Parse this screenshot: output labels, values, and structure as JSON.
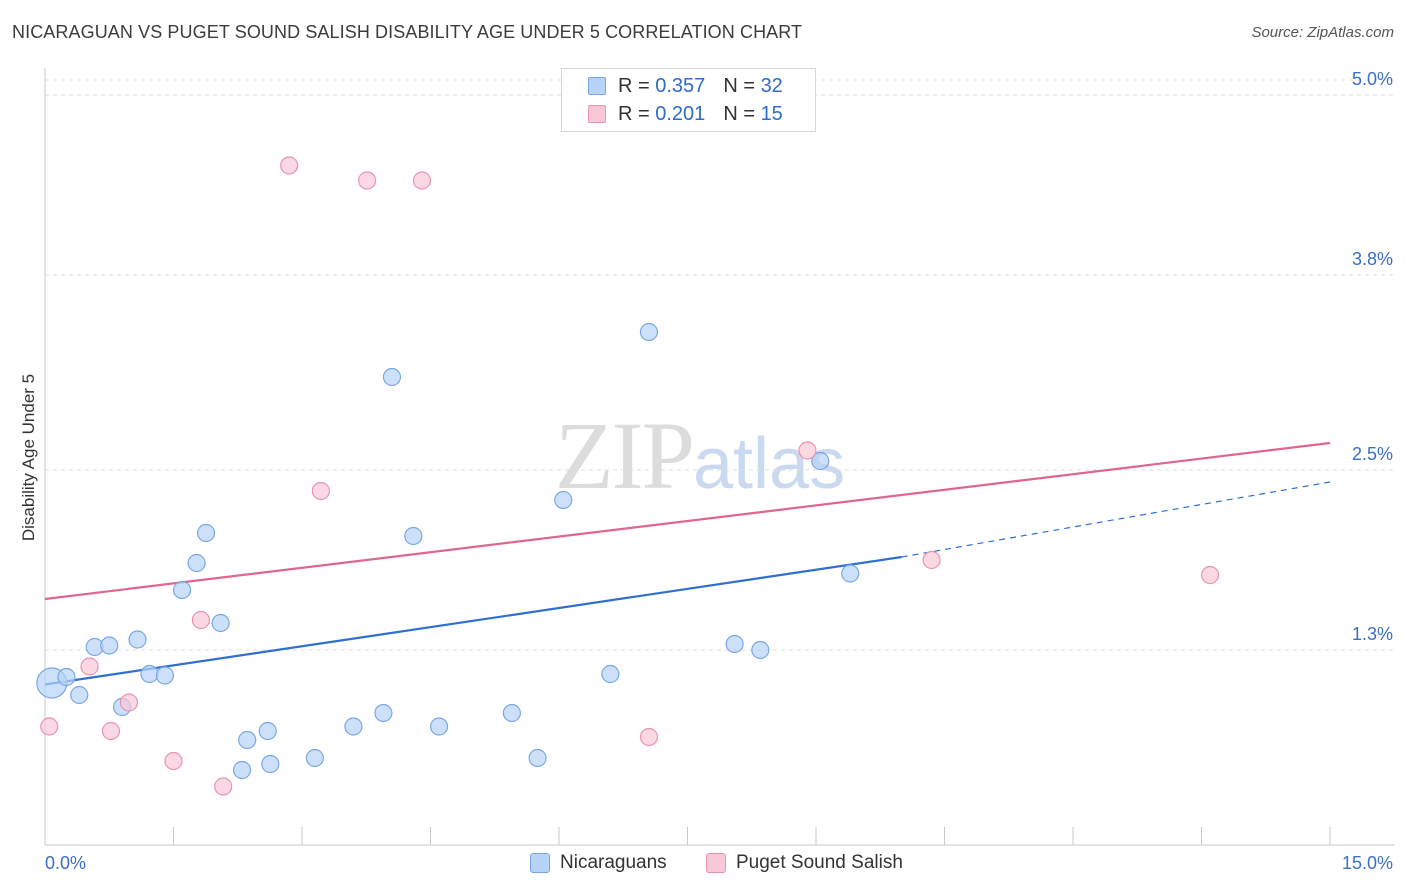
{
  "title": "NICARAGUAN VS PUGET SOUND SALISH DISABILITY AGE UNDER 5 CORRELATION CHART",
  "source": "Source: ZipAtlas.com",
  "watermark": {
    "zip": "ZIP",
    "atlas": "atlas"
  },
  "legend": {
    "r_label": "R =",
    "n_label": "N =",
    "rows": [
      {
        "r": "0.357",
        "n": "32",
        "fill": "#b7d3f7",
        "stroke": "#7aa7e3"
      },
      {
        "r": "0.201",
        "n": "15",
        "fill": "#f9c8d6",
        "stroke": "#ea93ae"
      }
    ]
  },
  "bottom_legend": [
    "Nicaraguans",
    "Puget Sound Salish"
  ],
  "colors": {
    "blue": "#2f6fd0",
    "pink": "#e0668f",
    "blue_fill": "#b7d3f7",
    "pink_fill": "#f9c8d6"
  },
  "chart_data": {
    "type": "scatter",
    "title": "NICARAGUAN VS PUGET SOUND SALISH DISABILITY AGE UNDER 5 CORRELATION CHART",
    "xlabel": "",
    "ylabel": "Disability Age Under 5",
    "xlim": [
      0,
      15
    ],
    "ylim": [
      0,
      5.1
    ],
    "x_tick_labels": [
      "0.0%",
      "15.0%"
    ],
    "y_ticks": [
      1.3,
      2.5,
      3.8,
      5.0
    ],
    "y_tick_labels": [
      "1.3%",
      "2.5%",
      "3.8%",
      "5.0%"
    ],
    "grid": true,
    "legend_position": "top-center",
    "series": [
      {
        "name": "Nicaraguans",
        "color": "#2f6fd0",
        "points": [
          {
            "x": 0.08,
            "y": 1.08,
            "big": true
          },
          {
            "x": 0.25,
            "y": 1.12
          },
          {
            "x": 0.4,
            "y": 1.0
          },
          {
            "x": 0.58,
            "y": 1.32
          },
          {
            "x": 0.75,
            "y": 1.33
          },
          {
            "x": 0.9,
            "y": 0.92
          },
          {
            "x": 1.08,
            "y": 1.37
          },
          {
            "x": 1.22,
            "y": 1.14
          },
          {
            "x": 1.4,
            "y": 1.13
          },
          {
            "x": 1.6,
            "y": 1.7
          },
          {
            "x": 1.77,
            "y": 1.88
          },
          {
            "x": 1.88,
            "y": 2.08
          },
          {
            "x": 2.05,
            "y": 1.48
          },
          {
            "x": 2.3,
            "y": 0.5
          },
          {
            "x": 2.36,
            "y": 0.7
          },
          {
            "x": 2.63,
            "y": 0.54
          },
          {
            "x": 2.6,
            "y": 0.76
          },
          {
            "x": 3.15,
            "y": 0.58
          },
          {
            "x": 3.6,
            "y": 0.79
          },
          {
            "x": 3.95,
            "y": 0.88
          },
          {
            "x": 4.05,
            "y": 3.12
          },
          {
            "x": 4.3,
            "y": 2.06
          },
          {
            "x": 4.6,
            "y": 0.79
          },
          {
            "x": 5.45,
            "y": 0.88
          },
          {
            "x": 5.75,
            "y": 0.58
          },
          {
            "x": 6.05,
            "y": 2.3
          },
          {
            "x": 6.6,
            "y": 1.14
          },
          {
            "x": 7.05,
            "y": 3.42
          },
          {
            "x": 8.05,
            "y": 1.34
          },
          {
            "x": 8.35,
            "y": 1.3
          },
          {
            "x": 9.05,
            "y": 2.56
          },
          {
            "x": 9.4,
            "y": 1.81
          }
        ],
        "trend": {
          "x": [
            0,
            10.0
          ],
          "y": [
            1.07,
            1.92
          ],
          "dashed_to": {
            "x": 15,
            "y": 2.42
          }
        }
      },
      {
        "name": "Puget Sound Salish",
        "color": "#e0668f",
        "points": [
          {
            "x": 0.05,
            "y": 0.79
          },
          {
            "x": 0.52,
            "y": 1.19
          },
          {
            "x": 0.77,
            "y": 0.76
          },
          {
            "x": 0.98,
            "y": 0.95
          },
          {
            "x": 1.5,
            "y": 0.56
          },
          {
            "x": 1.82,
            "y": 1.5
          },
          {
            "x": 2.08,
            "y": 0.39
          },
          {
            "x": 2.85,
            "y": 4.53
          },
          {
            "x": 3.22,
            "y": 2.36
          },
          {
            "x": 3.76,
            "y": 4.43
          },
          {
            "x": 4.4,
            "y": 4.43
          },
          {
            "x": 7.05,
            "y": 0.72
          },
          {
            "x": 8.9,
            "y": 2.63
          },
          {
            "x": 10.35,
            "y": 1.9
          },
          {
            "x": 13.6,
            "y": 1.8
          }
        ],
        "trend": {
          "x": [
            0,
            15
          ],
          "y": [
            1.64,
            2.68
          ]
        }
      }
    ]
  }
}
